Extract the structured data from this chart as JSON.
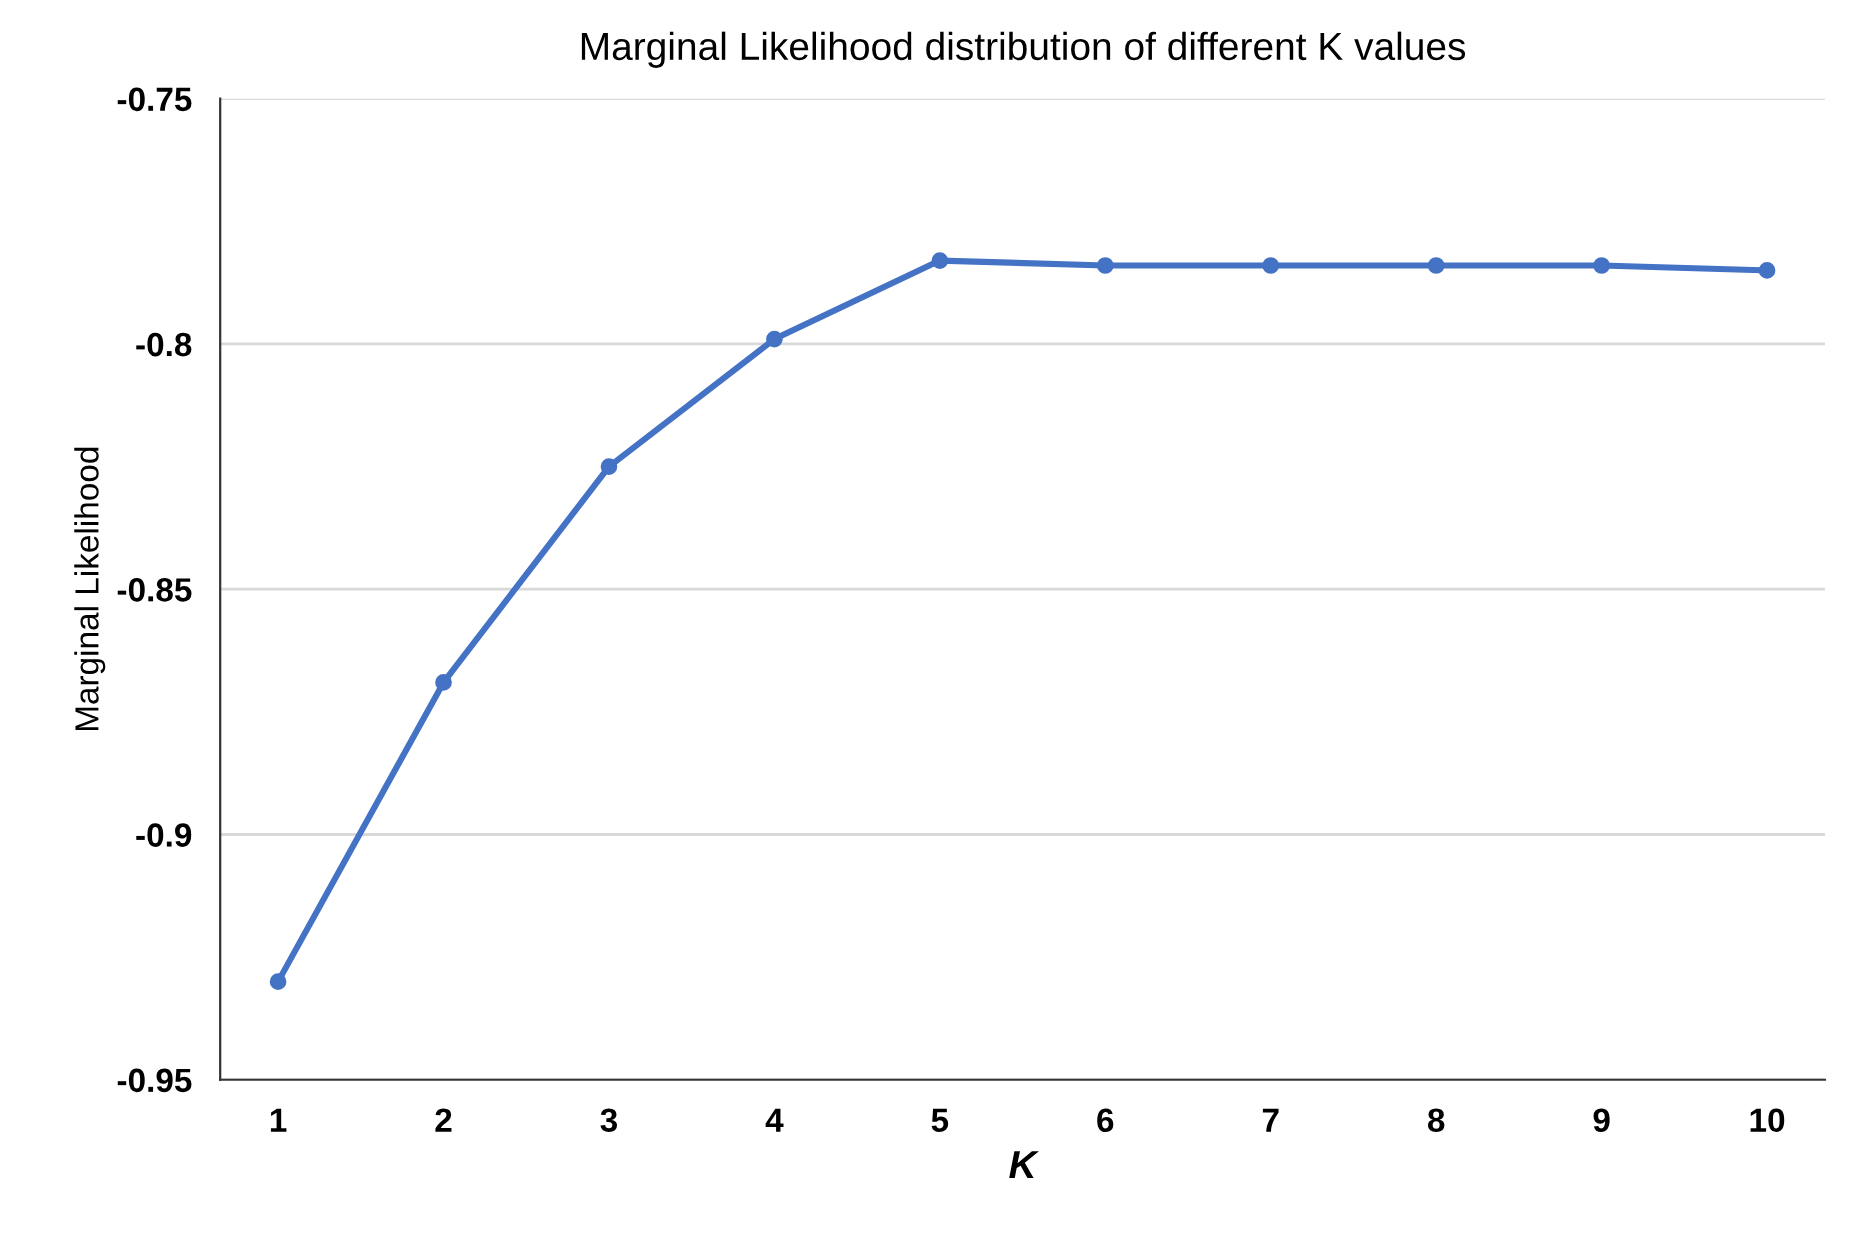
{
  "chart_data": {
    "type": "line",
    "title": "Marginal Likelihood distribution of different K values",
    "xlabel": "K",
    "ylabel": "Marginal Likelihood",
    "categories": [
      "1",
      "2",
      "3",
      "4",
      "5",
      "6",
      "7",
      "8",
      "9",
      "10"
    ],
    "series": [
      {
        "color": "#4472c4",
        "values": [
          -0.93,
          -0.869,
          -0.825,
          -0.799,
          -0.783,
          -0.784,
          -0.784,
          -0.784,
          -0.784,
          -0.785
        ]
      }
    ],
    "ylim": [
      -0.95,
      -0.75
    ],
    "yticks": [
      -0.95,
      -0.9,
      -0.85,
      -0.8,
      -0.75
    ],
    "grid": "y",
    "marker": "circle",
    "line_style": "solid"
  }
}
